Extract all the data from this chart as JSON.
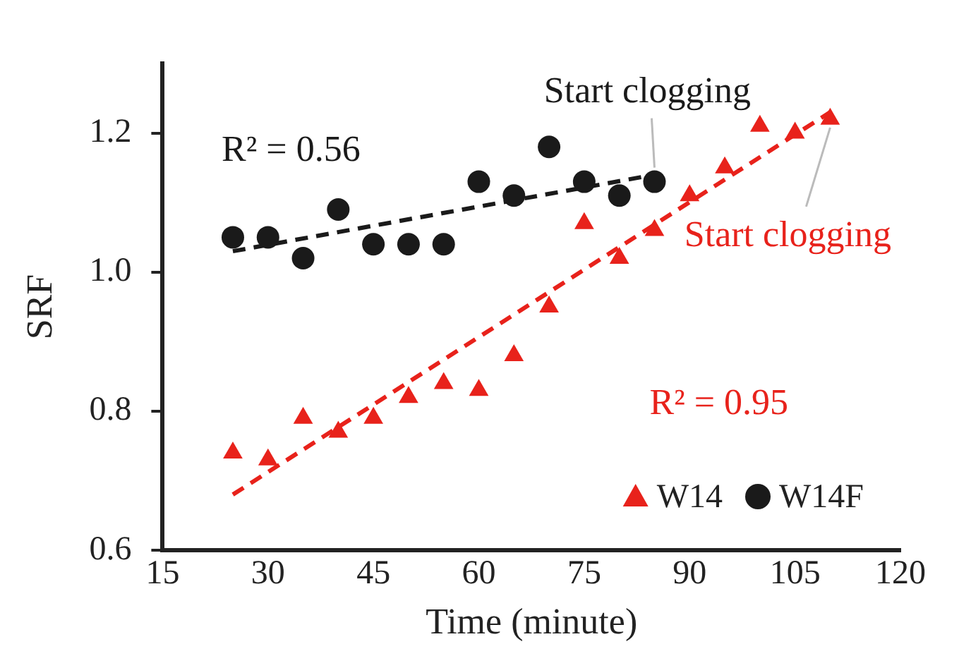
{
  "chart_data": {
    "type": "scatter",
    "xlabel": "Time (minute)",
    "ylabel": "SRF",
    "xlim": [
      15,
      120
    ],
    "xticks": [
      15,
      30,
      45,
      60,
      75,
      90,
      105,
      120
    ],
    "ylim": [
      0.6,
      1.3
    ],
    "yticks": [
      {
        "value": 0.6,
        "label": "0.6"
      },
      {
        "value": 0.8,
        "label": "0.8"
      },
      {
        "value": 1.0,
        "label": "1.0"
      },
      {
        "value": 1.2,
        "label": "1.2"
      }
    ],
    "grid": false,
    "legend": "bottom right",
    "series": [
      {
        "name": "W14",
        "color": "#e8221b",
        "marker": "triangle",
        "x": [
          25,
          30,
          35,
          40,
          45,
          50,
          55,
          60,
          65,
          70,
          75,
          80,
          85,
          90,
          95,
          100,
          105,
          110
        ],
        "values": [
          0.74,
          0.73,
          0.79,
          0.77,
          0.79,
          0.82,
          0.84,
          0.83,
          0.88,
          0.95,
          1.07,
          1.02,
          1.06,
          1.11,
          1.15,
          1.21,
          1.2,
          1.22
        ]
      },
      {
        "name": "W14F",
        "color": "#1a1a1a",
        "marker": "circle",
        "x": [
          25,
          30,
          35,
          40,
          45,
          50,
          55,
          60,
          65,
          70,
          75,
          80,
          85
        ],
        "values": [
          1.05,
          1.05,
          1.02,
          1.09,
          1.04,
          1.04,
          1.04,
          1.13,
          1.11,
          1.18,
          1.13,
          1.11,
          1.13
        ]
      },
      {
        "type": "line",
        "color": "#e8221b",
        "line_style": "dashed",
        "marker": "none",
        "x": [
          25,
          110
        ],
        "values": [
          0.68,
          1.23
        ]
      },
      {
        "type": "line",
        "color": "#1a1a1a",
        "line_style": "dashed",
        "marker": "none",
        "x": [
          25,
          85
        ],
        "values": [
          1.03,
          1.14
        ]
      }
    ],
    "annotations": [
      "R² = 0.56",
      "R² = 0.95",
      {
        "text": "Start clogging",
        "x": 85,
        "y": 1.13
      },
      {
        "text": "Start clogging",
        "x": 110,
        "y": 1.22
      }
    ]
  }
}
